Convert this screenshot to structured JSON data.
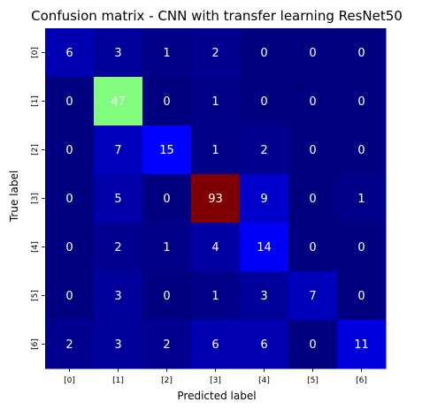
{
  "chart_data": {
    "type": "heatmap",
    "title": "Confusion matrix - CNN with transfer learning ResNet50",
    "xlabel": "Predicted label",
    "ylabel": "True label",
    "x_ticks": [
      "[0]",
      "[1]",
      "[2]",
      "[3]",
      "[4]",
      "[5]",
      "[6]"
    ],
    "y_ticks": [
      "[0]",
      "[1]",
      "[2]",
      "[3]",
      "[4]",
      "[5]",
      "[6]"
    ],
    "values": [
      [
        6,
        3,
        1,
        2,
        0,
        0,
        0
      ],
      [
        0,
        47,
        0,
        1,
        0,
        0,
        0
      ],
      [
        0,
        7,
        15,
        1,
        2,
        0,
        0
      ],
      [
        0,
        5,
        0,
        93,
        9,
        0,
        1
      ],
      [
        0,
        2,
        1,
        4,
        14,
        0,
        0
      ],
      [
        0,
        3,
        0,
        1,
        3,
        7,
        0
      ],
      [
        2,
        3,
        2,
        6,
        6,
        0,
        11
      ]
    ],
    "colormap": "gist_ncar-like: dark navy (low) to blue, green, red (high)",
    "vmin": 0,
    "vmax": 93,
    "colorbar": false,
    "annotation_color": "#ffffff"
  }
}
